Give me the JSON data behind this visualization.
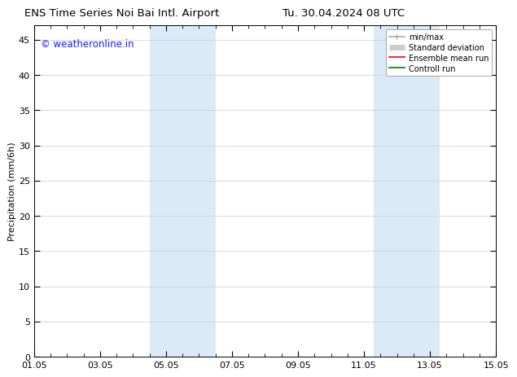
{
  "title_left": "ENS Time Series Noi Bai Intl. Airport",
  "title_right": "Tu. 30.04.2024 08 UTC",
  "ylabel": "Precipitation (mm/6h)",
  "watermark": "© weatheronline.in",
  "ylim": [
    0,
    47
  ],
  "yticks": [
    0,
    5,
    10,
    15,
    20,
    25,
    30,
    35,
    40,
    45
  ],
  "xtick_labels": [
    "01.05",
    "03.05",
    "05.05",
    "07.05",
    "09.05",
    "11.05",
    "13.05",
    "15.05"
  ],
  "xtick_positions": [
    0,
    2,
    4,
    6,
    8,
    10,
    12,
    14
  ],
  "xlim": [
    0,
    14
  ],
  "shaded_regions": [
    {
      "xmin": 3.5,
      "xmax": 5.5
    },
    {
      "xmin": 10.3,
      "xmax": 12.3
    }
  ],
  "shaded_color": "#daeaf7",
  "background_color": "#ffffff",
  "grid_color": "#cccccc",
  "legend_items": [
    {
      "label": "min/max",
      "color": "#aaaaaa",
      "lw": 1.2,
      "style": "line_with_caps"
    },
    {
      "label": "Standard deviation",
      "color": "#cccccc",
      "lw": 5,
      "style": "thick"
    },
    {
      "label": "Ensemble mean run",
      "color": "#ff0000",
      "lw": 1.2,
      "style": "line"
    },
    {
      "label": "Controll run",
      "color": "#008000",
      "lw": 1.2,
      "style": "line"
    }
  ],
  "title_fontsize": 9.5,
  "axis_fontsize": 8,
  "tick_fontsize": 8,
  "watermark_color": "#1a1aff",
  "watermark_fontsize": 8.5
}
